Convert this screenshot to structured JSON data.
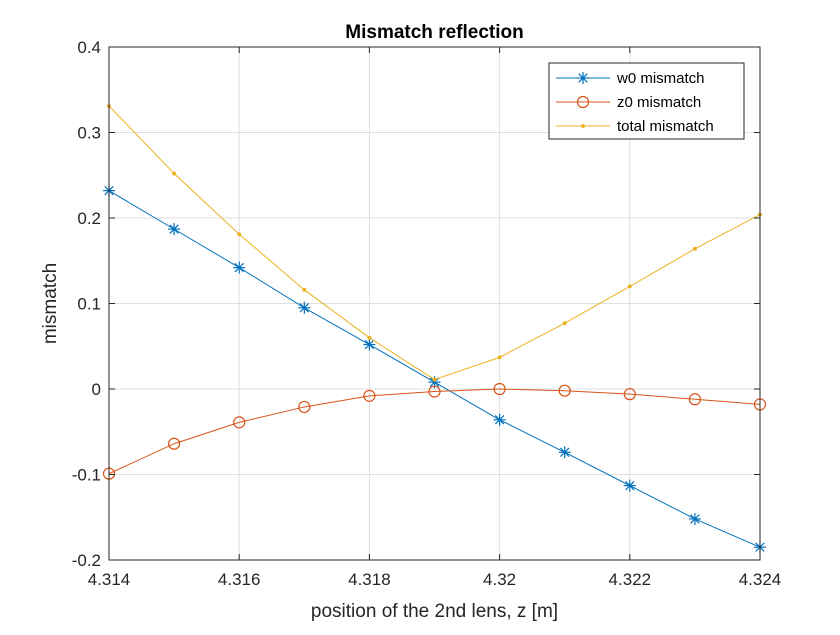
{
  "chart_data": {
    "type": "line",
    "title": "Mismatch reflection",
    "xlabel": "position of the 2nd lens, z [m]",
    "ylabel": "mismatch",
    "xlim": [
      4.314,
      4.324
    ],
    "ylim": [
      -0.2,
      0.4
    ],
    "grid": true,
    "legend_position": "top-right",
    "x_ticks": [
      "4.314",
      "4.316",
      "4.318",
      "4.32",
      "4.322",
      "4.324"
    ],
    "x_tick_values": [
      4.314,
      4.316,
      4.318,
      4.32,
      4.322,
      4.324
    ],
    "y_ticks": [
      "-0.2",
      "-0.1",
      "0",
      "0.1",
      "0.2",
      "0.3",
      "0.4"
    ],
    "y_tick_values": [
      -0.2,
      -0.1,
      0,
      0.1,
      0.2,
      0.3,
      0.4
    ],
    "x": [
      4.314,
      4.315,
      4.316,
      4.317,
      4.318,
      4.319,
      4.32,
      4.321,
      4.322,
      4.323,
      4.324
    ],
    "series": [
      {
        "name": "w0 mismatch",
        "color": "#0072BD",
        "marker": "asterisk",
        "values": [
          0.232,
          0.187,
          0.142,
          0.095,
          0.052,
          0.008,
          -0.036,
          -0.074,
          -0.113,
          -0.152,
          -0.185
        ]
      },
      {
        "name": "z0 mismatch",
        "color": "#D95319",
        "marker": "circle",
        "values": [
          -0.099,
          -0.064,
          -0.039,
          -0.021,
          -0.008,
          -0.003,
          0.0,
          -0.002,
          -0.006,
          -0.012,
          -0.018
        ]
      },
      {
        "name": "total mismatch",
        "color": "#EDB120",
        "marker": "dot",
        "values": [
          0.331,
          0.252,
          0.181,
          0.116,
          0.06,
          0.011,
          0.037,
          0.077,
          0.12,
          0.164,
          0.204
        ]
      }
    ]
  }
}
